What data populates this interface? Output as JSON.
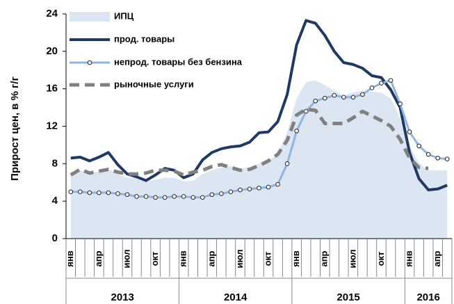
{
  "chart_data": {
    "type": "line",
    "ylabel": "Прирост цен, в % г/г",
    "categories": [
      "янв",
      null,
      null,
      "апр",
      null,
      null,
      "июл",
      null,
      null,
      "окт",
      null,
      null,
      "янв",
      null,
      null,
      "апр",
      null,
      null,
      "июл",
      null,
      null,
      "окт",
      null,
      null,
      "янв",
      null,
      null,
      "апр",
      null,
      null,
      "июл",
      null,
      null,
      "окт",
      null,
      null,
      "янв",
      null,
      null,
      "апр",
      null
    ],
    "years": [
      "2013",
      "2014",
      "2015",
      "2016"
    ],
    "ylim": [
      0,
      24
    ],
    "yticks": [
      0,
      4,
      8,
      12,
      16,
      20,
      24
    ],
    "grid": false,
    "legend": "upper left",
    "series": [
      {
        "name": "ИПЦ",
        "style": "area",
        "color": "#dce6f2",
        "values": [
          7.1,
          7.3,
          7.0,
          7.2,
          7.4,
          6.9,
          6.5,
          6.5,
          6.1,
          6.3,
          6.5,
          6.5,
          6.1,
          6.2,
          6.9,
          7.3,
          7.6,
          7.8,
          7.5,
          7.6,
          8.0,
          8.3,
          9.1,
          11.4,
          15.0,
          16.7,
          16.9,
          16.4,
          15.8,
          15.3,
          15.6,
          15.8,
          15.7,
          15.6,
          15.0,
          12.9,
          9.8,
          8.1,
          7.3,
          7.3,
          7.3
        ]
      },
      {
        "name": "прод. товары",
        "style": "line",
        "color": "#1f3864",
        "values": [
          8.6,
          8.7,
          8.3,
          8.7,
          9.2,
          7.9,
          6.9,
          6.6,
          6.2,
          6.8,
          7.5,
          7.3,
          6.5,
          6.9,
          8.4,
          9.2,
          9.6,
          9.8,
          9.9,
          10.3,
          11.3,
          11.4,
          12.5,
          15.4,
          20.7,
          23.3,
          23.0,
          21.7,
          20.0,
          18.8,
          18.6,
          18.2,
          17.4,
          17.2,
          15.9,
          14.0,
          9.2,
          6.4,
          5.2,
          5.3,
          5.7
        ]
      },
      {
        "name": "непрод. товары  без бензина",
        "style": "marker",
        "color": "#8eb4e3",
        "values": [
          5.0,
          5.0,
          4.9,
          4.9,
          4.9,
          4.8,
          4.7,
          4.5,
          4.5,
          4.4,
          4.4,
          4.5,
          4.5,
          4.4,
          4.4,
          4.7,
          4.8,
          5.0,
          5.2,
          5.3,
          5.4,
          5.5,
          5.8,
          8.0,
          11.5,
          13.6,
          14.7,
          15.0,
          15.3,
          15.1,
          15.1,
          15.4,
          16.1,
          16.6,
          16.9,
          14.4,
          11.4,
          9.9,
          9.0,
          8.6,
          8.5
        ]
      },
      {
        "name": "рыночные   услуги",
        "style": "dashed",
        "color": "#808080",
        "values": [
          6.8,
          7.4,
          7.0,
          7.2,
          7.4,
          7.1,
          6.9,
          6.9,
          7.0,
          7.3,
          7.3,
          7.2,
          6.8,
          7.1,
          7.3,
          7.7,
          7.9,
          7.6,
          7.3,
          7.4,
          7.8,
          8.3,
          9.0,
          10.5,
          13.2,
          13.8,
          13.7,
          12.3,
          12.3,
          12.3,
          12.9,
          13.6,
          13.1,
          12.6,
          12.0,
          10.6,
          8.6,
          7.6,
          7.5,
          null,
          null
        ]
      }
    ]
  }
}
